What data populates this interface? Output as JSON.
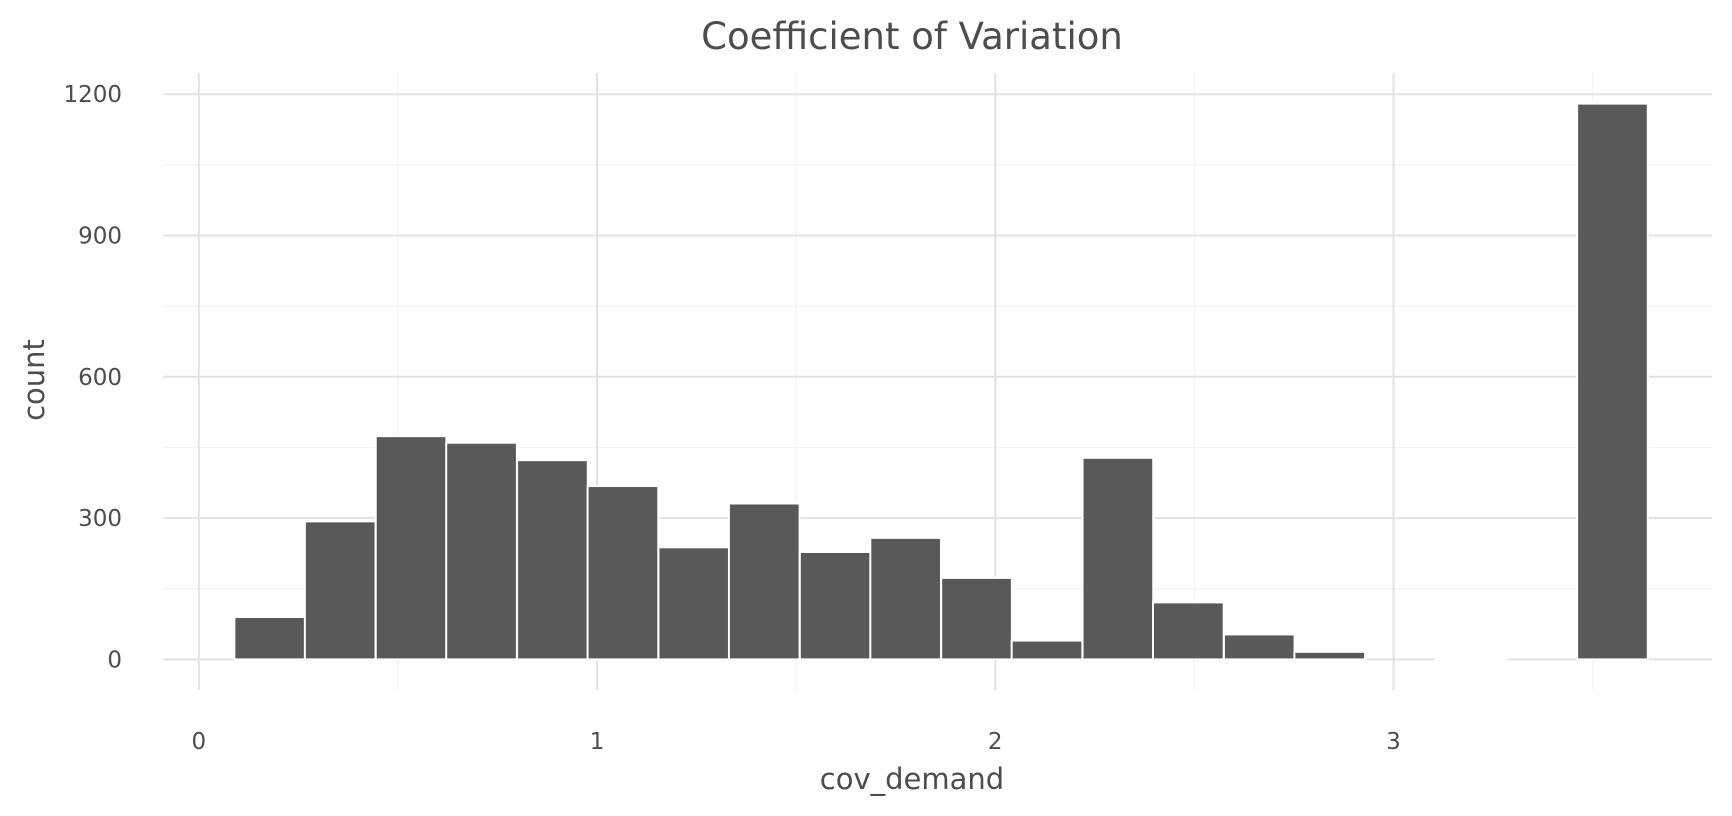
{
  "chart_data": {
    "type": "bar",
    "title": "Coefficient of Variation",
    "xlabel": "cov_demand",
    "ylabel": "count",
    "xlim": [
      -0.09,
      3.8
    ],
    "ylim": [
      -65,
      1245
    ],
    "x_ticks": [
      0,
      1,
      2,
      3
    ],
    "y_ticks": [
      0,
      300,
      600,
      900,
      1200
    ],
    "x_minor_ticks": [
      0.5,
      1.5,
      2.5,
      3.5
    ],
    "y_minor_ticks": [
      150,
      450,
      750,
      1050
    ],
    "grid": true,
    "bin_width": 0.1775,
    "bins": [
      {
        "x": 0.178,
        "count": 90
      },
      {
        "x": 0.355,
        "count": 293
      },
      {
        "x": 0.533,
        "count": 474
      },
      {
        "x": 0.71,
        "count": 460
      },
      {
        "x": 0.888,
        "count": 423
      },
      {
        "x": 1.065,
        "count": 368
      },
      {
        "x": 1.243,
        "count": 238
      },
      {
        "x": 1.42,
        "count": 331
      },
      {
        "x": 1.598,
        "count": 228
      },
      {
        "x": 1.775,
        "count": 258
      },
      {
        "x": 1.953,
        "count": 173
      },
      {
        "x": 2.13,
        "count": 40
      },
      {
        "x": 2.308,
        "count": 428
      },
      {
        "x": 2.485,
        "count": 121
      },
      {
        "x": 2.663,
        "count": 53
      },
      {
        "x": 2.84,
        "count": 16
      },
      {
        "x": 3.018,
        "count": 0
      },
      {
        "x": 3.195,
        "count": 3
      },
      {
        "x": 3.373,
        "count": 0
      },
      {
        "x": 3.55,
        "count": 1180
      }
    ]
  }
}
